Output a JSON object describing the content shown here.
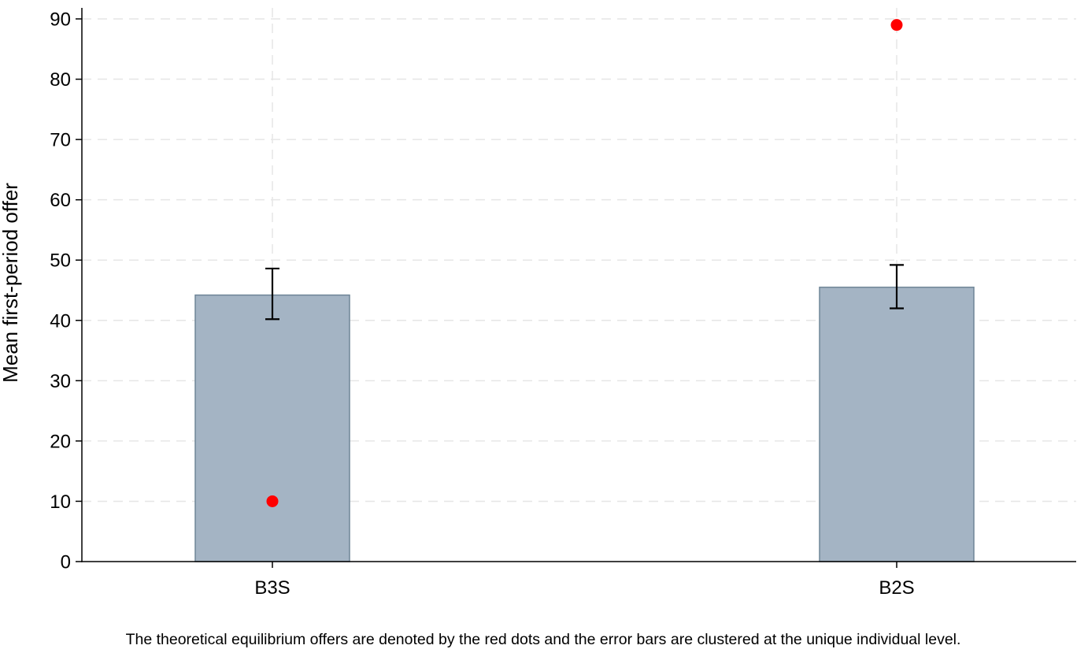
{
  "chart_data": {
    "type": "bar",
    "categories": [
      "B3S",
      "B2S"
    ],
    "series": [
      {
        "values": [
          44.2,
          45.5
        ],
        "error_low": [
          40.2,
          42.0
        ],
        "error_high": [
          48.6,
          49.2
        ]
      }
    ],
    "equilibrium_points": [
      10,
      89
    ],
    "ylabel": "Mean first-period offer",
    "xlabel": "",
    "ylim": [
      0,
      90
    ],
    "yticks": [
      0,
      10,
      20,
      30,
      40,
      50,
      60,
      70,
      80,
      90
    ],
    "grid": true,
    "note": "The theoretical equilibrium offers are denoted by the red dots and the error bars are clustered at the unique individual level.",
    "colors": {
      "bar_fill": "#a4b4c4",
      "bar_stroke": "#6f8597",
      "point": "#ff0000",
      "errorbar": "#000000",
      "grid": "#e6e6e6"
    }
  }
}
